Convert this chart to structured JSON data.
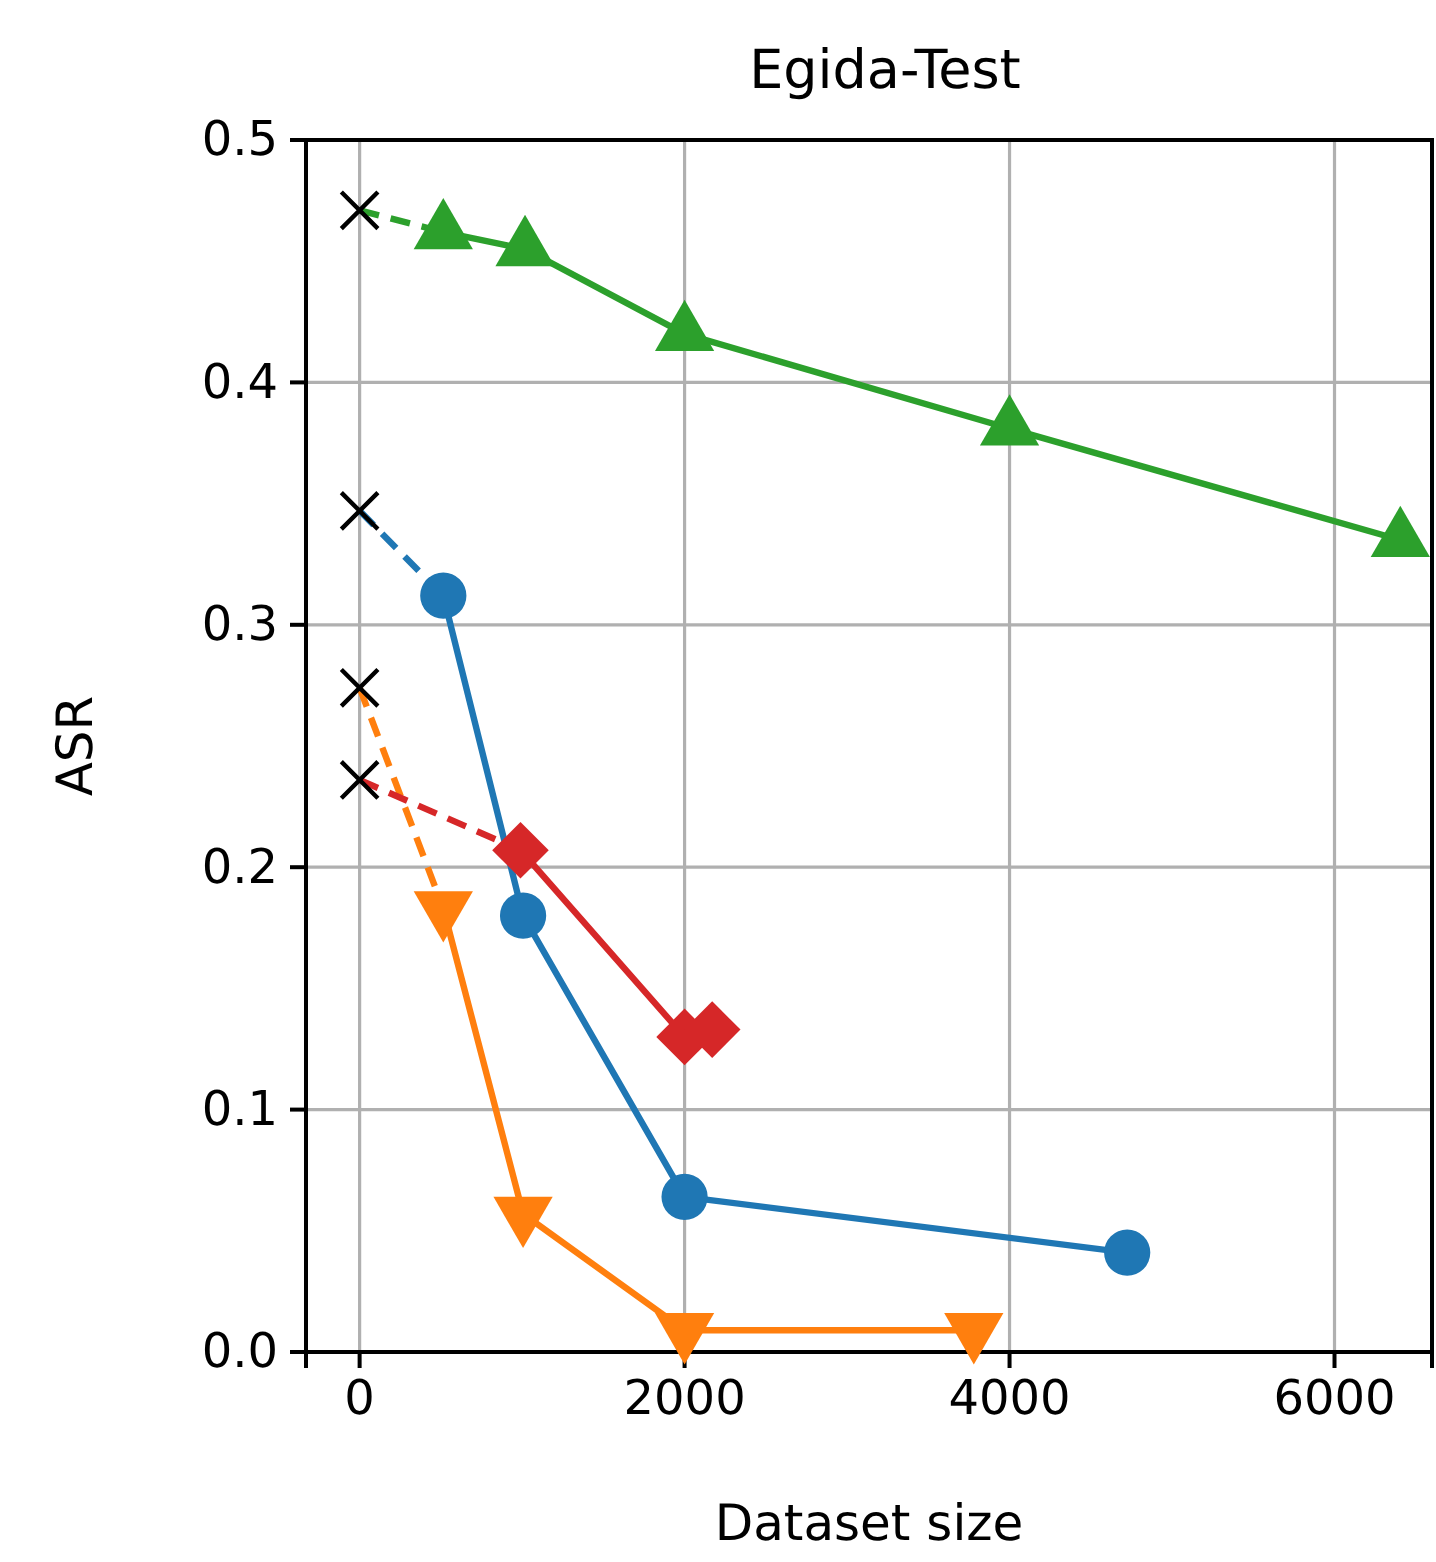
{
  "chart_data": {
    "type": "line",
    "title": "Egida-Test",
    "xlabel": "Dataset size",
    "ylabel": "ASR",
    "xlim": [
      -330,
      6600
    ],
    "ylim": [
      0,
      0.5
    ],
    "xticks": [
      0,
      2000,
      4000,
      6000
    ],
    "yticks": [
      {
        "value": 0,
        "label": "0.0"
      },
      0.1,
      0.2,
      0.3,
      0.4,
      0.5
    ],
    "grid": true,
    "series": [
      {
        "color": "#2ca02c",
        "line_style": "dashed",
        "x": [
          0,
          515
        ],
        "values": [
          0.471,
          0.462
        ]
      },
      {
        "color": "#1f77b4",
        "line_style": "dashed",
        "x": [
          0,
          515
        ],
        "values": [
          0.347,
          0.312
        ]
      },
      {
        "color": "#ff7f0e",
        "line_style": "dashed",
        "x": [
          0,
          515
        ],
        "values": [
          0.274,
          0.183
        ]
      },
      {
        "color": "#d62728",
        "line_style": "dashed",
        "x": [
          0,
          990
        ],
        "values": [
          0.236,
          0.207
        ]
      },
      {
        "color": "#2ca02c",
        "line_style": "solid",
        "marker": "triangle",
        "x": [
          515,
          1018,
          2000,
          4000,
          6405
        ],
        "values": [
          0.462,
          0.455,
          0.42,
          0.381,
          0.335
        ]
      },
      {
        "color": "#1f77b4",
        "line_style": "solid",
        "marker": "circle",
        "x": [
          515,
          1006,
          2000,
          4724
        ],
        "values": [
          0.312,
          0.18,
          0.064,
          0.041
        ]
      },
      {
        "color": "#ff7f0e",
        "line_style": "solid",
        "marker": "triangle-down",
        "x": [
          515,
          1006,
          2000,
          3780
        ],
        "values": [
          0.183,
          0.057,
          0.009,
          0.009
        ]
      },
      {
        "color": "#d62728",
        "line_style": "solid",
        "marker": "diamond",
        "x": [
          990,
          2000,
          2170
        ],
        "values": [
          0.207,
          0.13,
          0.133
        ]
      },
      {
        "type": "scatter",
        "color": "#000000",
        "marker": "cross",
        "x": [
          0,
          0,
          0,
          0
        ],
        "values": [
          0.471,
          0.347,
          0.274,
          0.236
        ]
      }
    ]
  }
}
